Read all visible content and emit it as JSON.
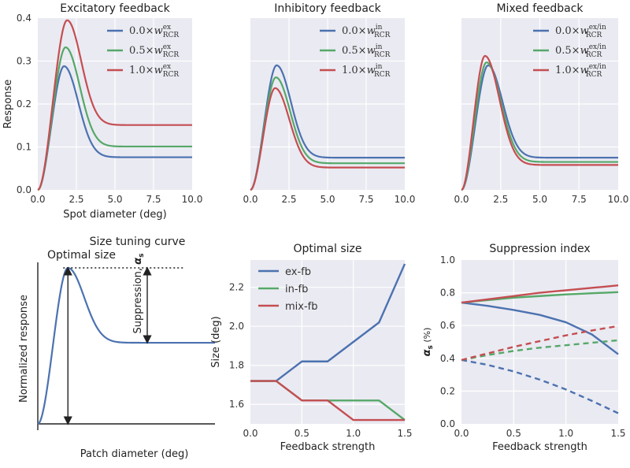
{
  "chart_data": [
    {
      "id": "exc",
      "type": "line",
      "title": "Excitatory feedback",
      "xlabel": "Spot diameter (deg)",
      "ylabel": "Response",
      "xlim": [
        0,
        10
      ],
      "ylim": [
        0,
        0.4
      ],
      "xticks": [
        0,
        2.5,
        5,
        7.5,
        10
      ],
      "xtick_labels": [
        "0.0",
        "2.5",
        "5.0",
        "7.5",
        "10.0"
      ],
      "yticks": [
        0,
        0.1,
        0.2,
        0.3,
        0.4
      ],
      "ytick_labels": [
        "0.0",
        "0.1",
        "0.2",
        "0.3",
        "0.4"
      ],
      "legend_position": "top-right",
      "series": [
        {
          "name": "0.0×w^ex_RCR",
          "coef": "0.0",
          "sup": "ex",
          "color": "#4c72b0",
          "peak_x": 1.7,
          "peak_y": 0.288,
          "plateau": 0.076
        },
        {
          "name": "0.5×w^ex_RCR",
          "coef": "0.5",
          "sup": "ex",
          "color": "#55a868",
          "peak_x": 1.8,
          "peak_y": 0.332,
          "plateau": 0.101
        },
        {
          "name": "1.0×w^ex_RCR",
          "coef": "1.0",
          "sup": "ex",
          "color": "#c44e52",
          "peak_x": 1.9,
          "peak_y": 0.395,
          "plateau": 0.151
        }
      ]
    },
    {
      "id": "inh",
      "type": "line",
      "title": "Inhibitory feedback",
      "xlim": [
        0,
        10
      ],
      "ylim": [
        0,
        0.4
      ],
      "xticks": [
        0,
        2.5,
        5,
        7.5,
        10
      ],
      "xtick_labels": [
        "0.0",
        "2.5",
        "5.0",
        "7.5",
        "10.0"
      ],
      "yticks": [
        0,
        0.1,
        0.2,
        0.3,
        0.4
      ],
      "ytick_labels": [],
      "legend_position": "top-right",
      "series": [
        {
          "name": "0.0×w^in_RCR",
          "coef": "0.0",
          "sup": "in",
          "color": "#4c72b0",
          "peak_x": 1.7,
          "peak_y": 0.29,
          "plateau": 0.075
        },
        {
          "name": "0.5×w^in_RCR",
          "coef": "0.5",
          "sup": "in",
          "color": "#55a868",
          "peak_x": 1.65,
          "peak_y": 0.262,
          "plateau": 0.062
        },
        {
          "name": "1.0×w^in_RCR",
          "coef": "1.0",
          "sup": "in",
          "color": "#c44e52",
          "peak_x": 1.6,
          "peak_y": 0.237,
          "plateau": 0.052
        }
      ]
    },
    {
      "id": "mix",
      "type": "line",
      "title": "Mixed feedback",
      "xlim": [
        0,
        10
      ],
      "ylim": [
        0,
        0.4
      ],
      "xticks": [
        0,
        2.5,
        5,
        7.5,
        10
      ],
      "xtick_labels": [
        "0.0",
        "2.5",
        "5.0",
        "7.5",
        "10.0"
      ],
      "yticks": [
        0,
        0.1,
        0.2,
        0.3,
        0.4
      ],
      "ytick_labels": [],
      "legend_position": "top-right",
      "series": [
        {
          "name": "0.0×w^ex/in_RCR",
          "coef": "0.0",
          "sup": "ex/in",
          "color": "#4c72b0",
          "peak_x": 1.7,
          "peak_y": 0.29,
          "plateau": 0.075
        },
        {
          "name": "0.5×w^ex/in_RCR",
          "coef": "0.5",
          "sup": "ex/in",
          "color": "#55a868",
          "peak_x": 1.6,
          "peak_y": 0.297,
          "plateau": 0.065
        },
        {
          "name": "1.0×w^ex/in_RCR",
          "coef": "1.0",
          "sup": "ex/in",
          "color": "#c44e52",
          "peak_x": 1.5,
          "peak_y": 0.312,
          "plateau": 0.058
        }
      ]
    },
    {
      "id": "schematic",
      "type": "line",
      "title": "Size tuning curve",
      "annotation_optimal": "Optimal size",
      "annotation_suppression": "Suppression, ",
      "annotation_alpha": "α",
      "annotation_alpha_sub": "s",
      "xlabel": "Patch diameter (deg)",
      "ylabel": "Normalized response",
      "color": "#4c72b0",
      "peak_x": 1.7,
      "peak_y": 1.0,
      "plateau": 0.52
    },
    {
      "id": "optsize",
      "type": "line",
      "title": "Optimal size",
      "xlabel": "Feedback strength",
      "ylabel": "Size (deg)",
      "xlim": [
        0,
        1.5
      ],
      "ylim": [
        1.5,
        2.34
      ],
      "xticks": [
        0,
        0.5,
        1.0,
        1.5
      ],
      "xtick_labels": [
        "0.0",
        "0.5",
        "1.0",
        "1.5"
      ],
      "yticks": [
        1.6,
        1.8,
        2.0,
        2.2
      ],
      "ytick_labels": [
        "1.6",
        "1.8",
        "2.0",
        "2.2"
      ],
      "legend_position": "top-left",
      "x": [
        0,
        0.25,
        0.5,
        0.75,
        1.0,
        1.25,
        1.5
      ],
      "series": [
        {
          "name": "ex-fb",
          "color": "#4c72b0",
          "values": [
            1.72,
            1.72,
            1.82,
            1.82,
            1.92,
            2.02,
            2.32
          ]
        },
        {
          "name": "in-fb",
          "color": "#55a868",
          "values": [
            1.72,
            1.72,
            1.62,
            1.62,
            1.62,
            1.62,
            1.52
          ]
        },
        {
          "name": "mix-fb",
          "color": "#c44e52",
          "values": [
            1.72,
            1.72,
            1.62,
            1.62,
            1.52,
            1.52,
            1.52
          ]
        }
      ]
    },
    {
      "id": "suppidx",
      "type": "line",
      "title": "Suppression index",
      "xlabel": "Feedback strength",
      "ylabel_main": "α",
      "ylabel_sub": "s",
      "ylabel_unit": " (%)",
      "xlim": [
        0,
        1.5
      ],
      "ylim": [
        0,
        1.0
      ],
      "xticks": [
        0,
        0.5,
        1.0,
        1.5
      ],
      "xtick_labels": [
        "0.0",
        "0.5",
        "1.0",
        "1.5"
      ],
      "yticks": [
        0,
        0.2,
        0.4,
        0.6,
        0.8,
        1.0
      ],
      "ytick_labels": [
        "0.0",
        "0.2",
        "0.4",
        "0.6",
        "0.8",
        "1.0"
      ],
      "x": [
        0,
        0.25,
        0.5,
        0.75,
        1.0,
        1.25,
        1.5
      ],
      "series": [
        {
          "name": "ex-fb solid",
          "color": "#4c72b0",
          "dashed": false,
          "values": [
            0.74,
            0.72,
            0.695,
            0.665,
            0.62,
            0.545,
            0.425
          ]
        },
        {
          "name": "in-fb solid",
          "color": "#55a868",
          "dashed": false,
          "values": [
            0.74,
            0.755,
            0.77,
            0.78,
            0.79,
            0.797,
            0.804
          ]
        },
        {
          "name": "mix-fb solid",
          "color": "#c44e52",
          "dashed": false,
          "values": [
            0.74,
            0.76,
            0.78,
            0.8,
            0.815,
            0.83,
            0.845
          ]
        },
        {
          "name": "ex-fb dashed",
          "color": "#4c72b0",
          "dashed": true,
          "values": [
            0.39,
            0.36,
            0.32,
            0.27,
            0.21,
            0.14,
            0.065
          ]
        },
        {
          "name": "in-fb dashed",
          "color": "#55a868",
          "dashed": true,
          "values": [
            0.39,
            0.42,
            0.445,
            0.465,
            0.48,
            0.495,
            0.51
          ]
        },
        {
          "name": "mix-fb dashed",
          "color": "#c44e52",
          "dashed": true,
          "values": [
            0.39,
            0.43,
            0.47,
            0.505,
            0.54,
            0.57,
            0.597
          ]
        }
      ]
    }
  ]
}
